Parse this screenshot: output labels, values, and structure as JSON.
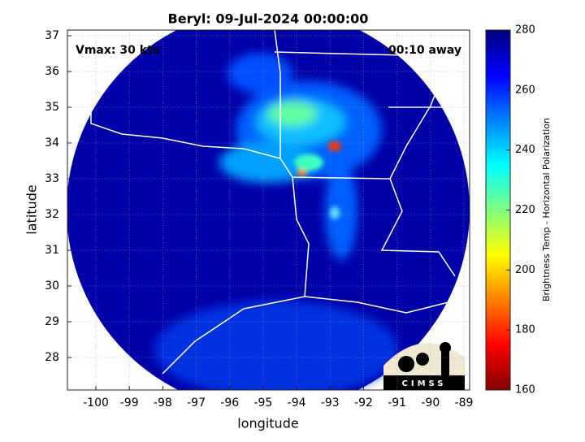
{
  "chart_data": {
    "type": "map",
    "title": "Beryl: 09-Jul-2024 00:00:00",
    "annotations": [
      "Vmax: 30 kts",
      "00:10 away"
    ],
    "x_label": "longitude",
    "y_label": "latitude",
    "xlim": [
      -100.85,
      -88.83
    ],
    "ylim": [
      27.09,
      37.16
    ],
    "xticks": [
      -100,
      -99,
      -98,
      -97,
      -96,
      -95,
      -94,
      -93,
      -92,
      -91,
      -90,
      -89
    ],
    "yticks": [
      28,
      29,
      30,
      31,
      32,
      33,
      34,
      35,
      36,
      37
    ],
    "grid": true,
    "colorbar": {
      "label": "Brightness Temp - Horizontal Polarization",
      "lim": [
        160,
        280
      ],
      "ticks": [
        160,
        180,
        200,
        220,
        240,
        260,
        280
      ]
    },
    "logo": "CIMSS"
  }
}
